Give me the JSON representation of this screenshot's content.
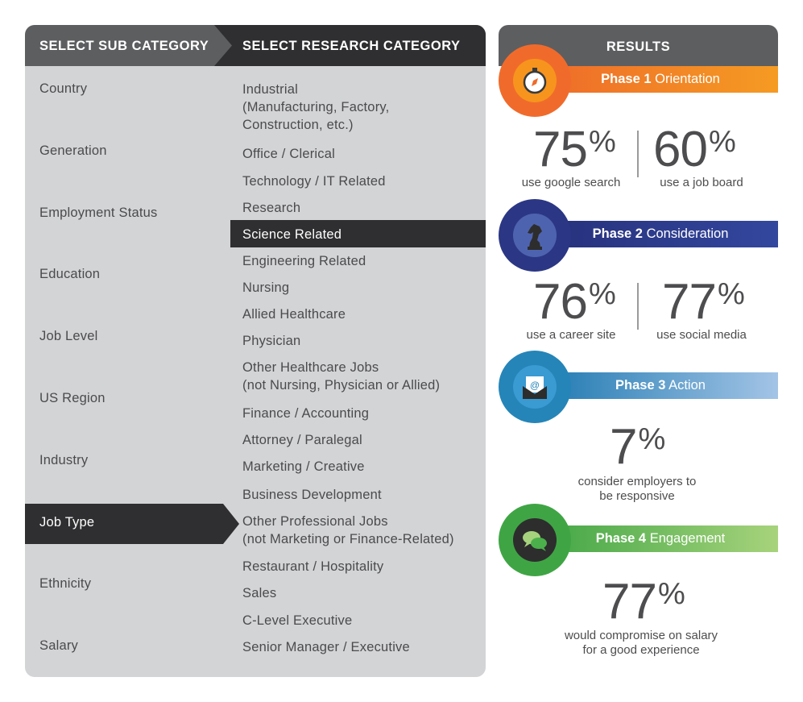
{
  "headers": {
    "sub_category": "SELECT SUB CATEGORY",
    "research_category": "SELECT RESEARCH CATEGORY",
    "results": "RESULTS"
  },
  "sub_categories": [
    {
      "label": "Country"
    },
    {
      "label": "Generation"
    },
    {
      "label": "Employment Status"
    },
    {
      "label": "Education"
    },
    {
      "label": "Job Level"
    },
    {
      "label": "US Region"
    },
    {
      "label": "Industry"
    },
    {
      "label": "Job Type",
      "selected": true
    },
    {
      "label": "Ethnicity"
    },
    {
      "label": "Salary"
    }
  ],
  "research_categories": [
    {
      "label": "Industrial\n(Manufacturing, Factory,\nConstruction, etc.)"
    },
    {
      "label": "Office / Clerical"
    },
    {
      "label": "Technology / IT Related"
    },
    {
      "label": "Research"
    },
    {
      "label": "Science Related",
      "selected": true
    },
    {
      "label": "Engineering Related"
    },
    {
      "label": "Nursing"
    },
    {
      "label": "Allied Healthcare"
    },
    {
      "label": "Physician"
    },
    {
      "label": "Other Healthcare Jobs\n(not Nursing, Physician or Allied)"
    },
    {
      "label": "Finance / Accounting"
    },
    {
      "label": "Attorney / Paralegal"
    },
    {
      "label": "Marketing / Creative"
    },
    {
      "label": "Business Development"
    },
    {
      "label": "Other Professional Jobs\n(not Marketing or Finance-Related)"
    },
    {
      "label": "Restaurant / Hospitality"
    },
    {
      "label": "Sales"
    },
    {
      "label": "C-Level Executive"
    },
    {
      "label": "Senior Manager / Executive"
    }
  ],
  "phases": [
    {
      "prefix": "Phase 1",
      "name": "Orientation",
      "icon": "compass-icon",
      "color": "#f05a28",
      "stats": [
        {
          "value": "75",
          "unit": "%",
          "caption": "use google search"
        },
        {
          "value": "60",
          "unit": "%",
          "caption": "use a job board"
        }
      ]
    },
    {
      "prefix": "Phase 2",
      "name": "Consideration",
      "icon": "chess-knight-icon",
      "color": "#2b3784",
      "stats": [
        {
          "value": "76",
          "unit": "%",
          "caption": "use a career site"
        },
        {
          "value": "77",
          "unit": "%",
          "caption": "use social media"
        }
      ]
    },
    {
      "prefix": "Phase 3",
      "name": "Action",
      "icon": "email-icon",
      "color": "#2585b8",
      "stats": [
        {
          "value": "7",
          "unit": "%",
          "caption": "consider employers to\nbe responsive"
        }
      ]
    },
    {
      "prefix": "Phase 4",
      "name": "Engagement",
      "icon": "chat-bubbles-icon",
      "color": "#4bb04b",
      "stats": [
        {
          "value": "77",
          "unit": "%",
          "caption": "would compromise on salary\nfor a good experience"
        }
      ]
    }
  ],
  "colors": {
    "panel_bg": "#d3d4d6",
    "header_gray": "#5d5e60",
    "header_dark": "#2f2e30",
    "text": "#4b4b4d"
  }
}
